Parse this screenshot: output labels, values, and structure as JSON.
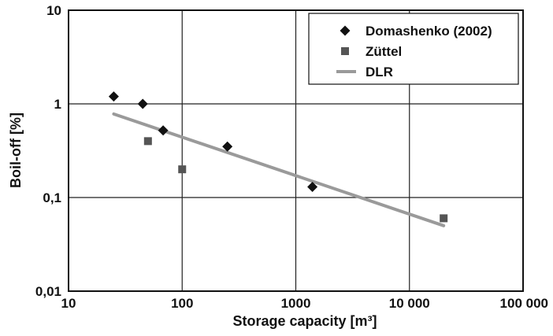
{
  "chart_data": {
    "type": "scatter",
    "xlabel": "Storage capacity [m³]",
    "ylabel": "Boil-off [%]",
    "x_scale": "log",
    "y_scale": "log",
    "xlim": [
      10,
      100000
    ],
    "ylim": [
      0.01,
      10
    ],
    "x_ticks": [
      {
        "value": 10,
        "label": "10"
      },
      {
        "value": 100,
        "label": "100"
      },
      {
        "value": 1000,
        "label": "1000"
      },
      {
        "value": 10000,
        "label": "10 000"
      },
      {
        "value": 100000,
        "label": "100 000"
      }
    ],
    "y_ticks": [
      {
        "value": 0.01,
        "label": "0,01"
      },
      {
        "value": 0.1,
        "label": "0,1"
      },
      {
        "value": 1,
        "label": "1"
      },
      {
        "value": 10,
        "label": "10"
      }
    ],
    "grid": true,
    "legend_position": "top-right",
    "series": [
      {
        "name": "Domashenko (2002)",
        "marker": "diamond",
        "color": "#111111",
        "points": [
          {
            "x": 25,
            "y": 1.2
          },
          {
            "x": 45,
            "y": 1.0
          },
          {
            "x": 68,
            "y": 0.52
          },
          {
            "x": 250,
            "y": 0.35
          },
          {
            "x": 1400,
            "y": 0.13
          }
        ]
      },
      {
        "name": "Züttel",
        "marker": "square",
        "color": "#555555",
        "points": [
          {
            "x": 50,
            "y": 0.4
          },
          {
            "x": 100,
            "y": 0.2
          },
          {
            "x": 20000,
            "y": 0.06
          }
        ]
      },
      {
        "name": "DLR",
        "marker": "line",
        "color": "#9a9a9a",
        "points": [
          {
            "x": 25,
            "y": 0.78
          },
          {
            "x": 20000,
            "y": 0.05
          }
        ]
      }
    ]
  }
}
